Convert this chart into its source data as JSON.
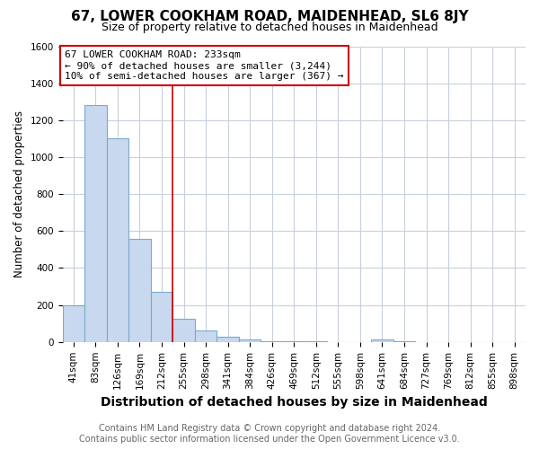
{
  "title": "67, LOWER COOKHAM ROAD, MAIDENHEAD, SL6 8JY",
  "subtitle": "Size of property relative to detached houses in Maidenhead",
  "xlabel": "Distribution of detached houses by size in Maidenhead",
  "ylabel": "Number of detached properties",
  "footer_line1": "Contains HM Land Registry data © Crown copyright and database right 2024.",
  "footer_line2": "Contains public sector information licensed under the Open Government Licence v3.0.",
  "annotation_line1": "67 LOWER COOKHAM ROAD: 233sqm",
  "annotation_line2": "← 90% of detached houses are smaller (3,244)",
  "annotation_line3": "10% of semi-detached houses are larger (367) →",
  "property_size_idx": 4.5,
  "bar_labels": [
    "41sqm",
    "83sqm",
    "126sqm",
    "169sqm",
    "212sqm",
    "255sqm",
    "298sqm",
    "341sqm",
    "384sqm",
    "426sqm",
    "469sqm",
    "512sqm",
    "555sqm",
    "598sqm",
    "641sqm",
    "684sqm",
    "727sqm",
    "769sqm",
    "812sqm",
    "855sqm",
    "898sqm"
  ],
  "bar_heights": [
    200,
    1280,
    1100,
    560,
    270,
    125,
    60,
    30,
    15,
    5,
    3,
    2,
    1,
    0,
    15,
    2,
    0,
    0,
    0,
    0,
    0
  ],
  "bar_color": "#c8d8ee",
  "bar_edge_color": "#7aaacc",
  "vline_color": "#cc0000",
  "annotation_box_facecolor": "#ffffff",
  "annotation_box_edgecolor": "#cc0000",
  "bg_color": "#ffffff",
  "grid_color": "#c8d0dc",
  "ylim": [
    0,
    1600
  ],
  "yticks": [
    0,
    200,
    400,
    600,
    800,
    1000,
    1200,
    1400,
    1600
  ],
  "title_fontsize": 11,
  "subtitle_fontsize": 9,
  "xlabel_fontsize": 10,
  "ylabel_fontsize": 8.5,
  "tick_fontsize": 7.5,
  "footer_fontsize": 7,
  "annotation_fontsize": 8
}
